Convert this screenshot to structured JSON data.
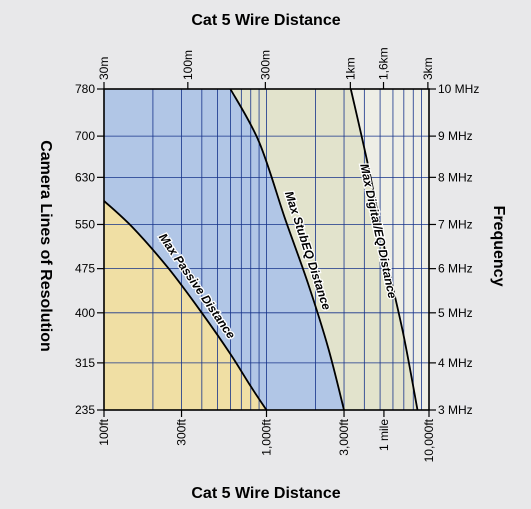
{
  "chart_data": {
    "type": "area",
    "title_top": "Cat 5  Wire Distance",
    "title_bottom": "Cat 5  Wire Distance",
    "ylabel_left": "Camera Lines of Resolution",
    "ylabel_right": "Frequency",
    "x_scale": "log",
    "xlim_ft": [
      100,
      10000
    ],
    "ylim_lines": [
      235,
      780
    ],
    "grid": true,
    "x_ticks_top": [
      {
        "label": "30m",
        "ft": 100
      },
      {
        "label": "100m",
        "ft": 328
      },
      {
        "label": "300m",
        "ft": 984
      },
      {
        "label": "1km",
        "ft": 3281
      },
      {
        "label": "1,6km",
        "ft": 5249
      },
      {
        "label": "3km",
        "ft": 9843
      }
    ],
    "x_ticks_bottom": [
      {
        "label": "100ft",
        "ft": 100
      },
      {
        "label": "300ft",
        "ft": 300
      },
      {
        "label": "1,000ft",
        "ft": 1000
      },
      {
        "label": "3,000ft",
        "ft": 3000
      },
      {
        "label": "1 mile",
        "ft": 5280
      },
      {
        "label": "10,000ft",
        "ft": 10000
      }
    ],
    "y_ticks_left": [
      {
        "label": "780",
        "lines": 780
      },
      {
        "label": "700",
        "lines": 700
      },
      {
        "label": "630",
        "lines": 630
      },
      {
        "label": "550",
        "lines": 550
      },
      {
        "label": "475",
        "lines": 475
      },
      {
        "label": "400",
        "lines": 400
      },
      {
        "label": "315",
        "lines": 315
      },
      {
        "label": "235",
        "lines": 235
      }
    ],
    "y_ticks_right": [
      {
        "label": "10 MHz",
        "lines": 780
      },
      {
        "label": "9 MHz",
        "lines": 700
      },
      {
        "label": "8 MHz",
        "lines": 630
      },
      {
        "label": "7 MHz",
        "lines": 550
      },
      {
        "label": "6 MHz",
        "lines": 475
      },
      {
        "label": "5 MHz",
        "lines": 400
      },
      {
        "label": "4 MHz",
        "lines": 315
      },
      {
        "label": "3 MHz",
        "lines": 235
      }
    ],
    "series": [
      {
        "name": "Max Passive Distance",
        "color": "#f0dfa4",
        "points": [
          [
            100,
            590
          ],
          [
            150,
            545
          ],
          [
            250,
            475
          ],
          [
            400,
            400
          ],
          [
            600,
            330
          ],
          [
            800,
            275
          ],
          [
            1000,
            235
          ]
        ]
      },
      {
        "name": "Max StubEQ Distance",
        "color": "#b1c6e6",
        "points": [
          [
            600,
            780
          ],
          [
            900,
            690
          ],
          [
            1300,
            560
          ],
          [
            1800,
            450
          ],
          [
            2400,
            340
          ],
          [
            3000,
            235
          ]
        ]
      },
      {
        "name": "Max Digital/EQ Distance",
        "color": "#e2e3cc",
        "points": [
          [
            3300,
            780
          ],
          [
            4300,
            640
          ],
          [
            5500,
            490
          ],
          [
            7000,
            360
          ],
          [
            8500,
            235
          ]
        ]
      }
    ],
    "outside_color": "#eeeee6"
  }
}
